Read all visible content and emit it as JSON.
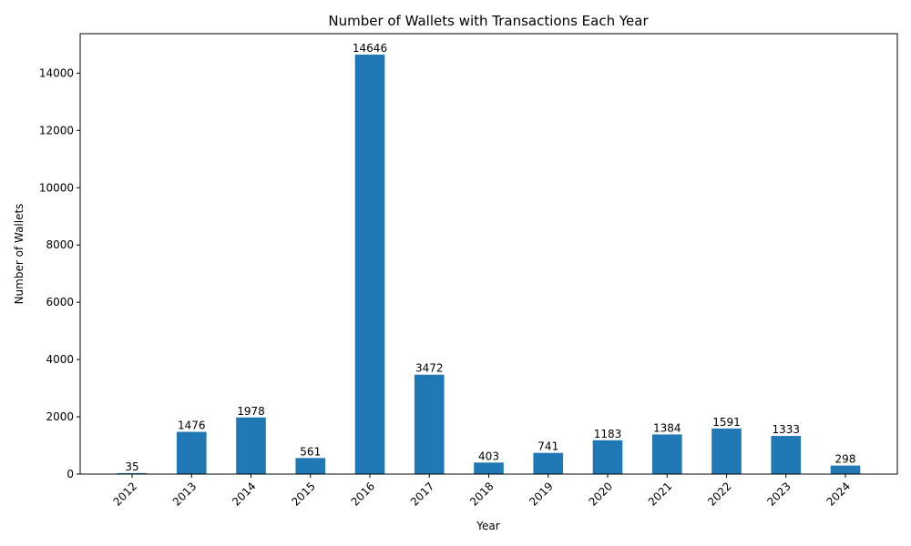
{
  "chart_data": {
    "type": "bar",
    "title": "Number of Wallets with Transactions Each Year",
    "xlabel": "Year",
    "ylabel": "Number of Wallets",
    "categories": [
      "2012",
      "2013",
      "2014",
      "2015",
      "2016",
      "2017",
      "2018",
      "2019",
      "2020",
      "2021",
      "2022",
      "2023",
      "2024"
    ],
    "values": [
      35,
      1476,
      1978,
      561,
      14646,
      3472,
      403,
      741,
      1183,
      1384,
      1591,
      1333,
      298
    ],
    "yticks": [
      0,
      2000,
      4000,
      6000,
      8000,
      10000,
      12000,
      14000
    ],
    "ylim": [
      0,
      15378
    ],
    "bar_color": "#1f77b4",
    "grid": false,
    "data_labels": true
  }
}
